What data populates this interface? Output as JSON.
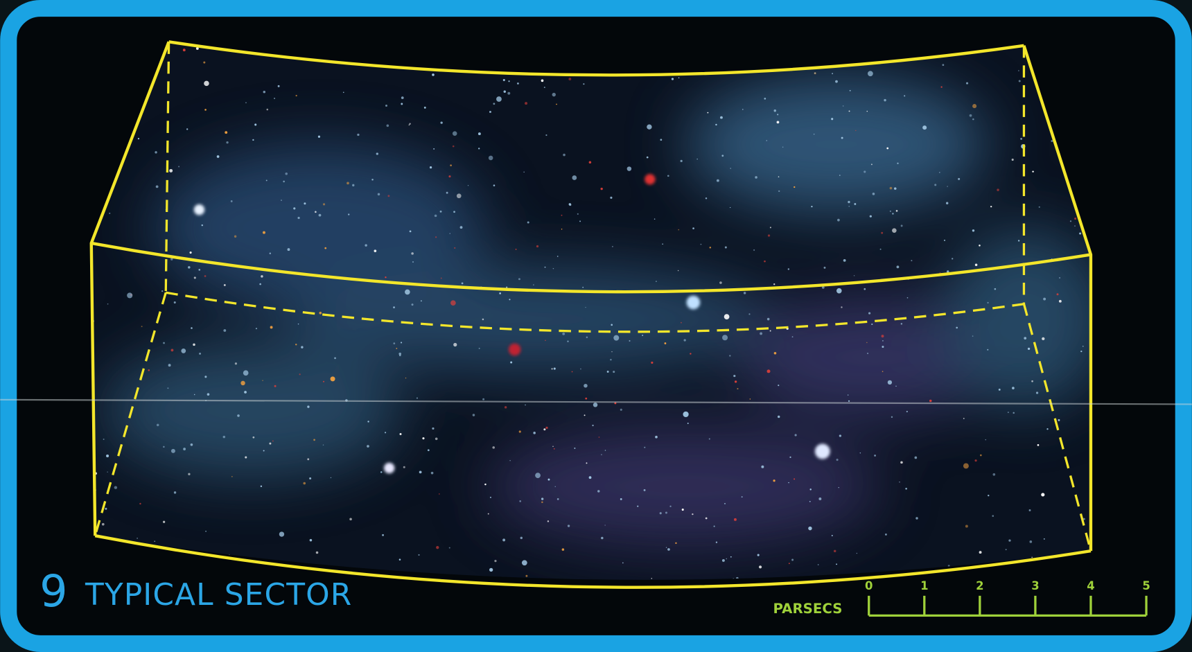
{
  "panel": {
    "number": "9",
    "title": "TYPICAL SECTOR"
  },
  "scale": {
    "label": "PARSECS",
    "ticks": [
      0,
      1,
      2,
      3,
      4,
      5
    ]
  }
}
